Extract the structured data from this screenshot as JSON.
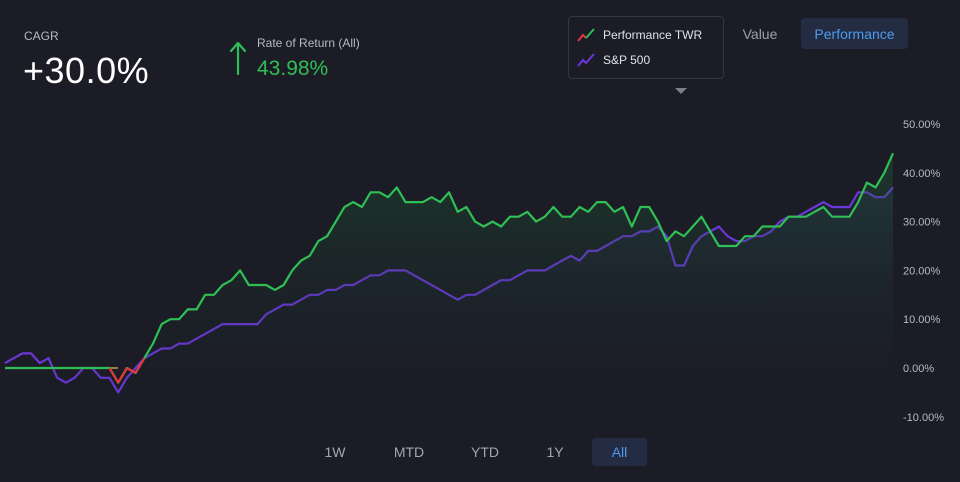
{
  "header": {
    "cagr_label": "CAGR",
    "cagr_value": "+30.0%",
    "ror_label": "Rate of Return (All)",
    "ror_value": "43.98%"
  },
  "legend": {
    "items": [
      {
        "label": "Performance TWR",
        "icon": "red-green-line-icon"
      },
      {
        "label": "S&P 500",
        "icon": "purple-line-icon"
      }
    ]
  },
  "view_toggle": {
    "value_label": "Value",
    "performance_label": "Performance",
    "active": "Performance"
  },
  "range_buttons": {
    "labels": [
      "1W",
      "MTD",
      "YTD",
      "1Y",
      "All"
    ],
    "active": "All"
  },
  "colors": {
    "background": "#1b1c25",
    "performance_line": "#2fbf55",
    "performance_negative": "#e8333c",
    "sp500_line": "#6a38d8",
    "accent_blue": "#4d9bef",
    "baseline": "#c79b5a"
  },
  "chart_data": {
    "type": "line",
    "y_ticks": [
      "50.00%",
      "40.00%",
      "30.00%",
      "20.00%",
      "10.00%",
      "0.00%",
      "-10.00%"
    ],
    "ylim": [
      -13,
      53
    ],
    "y_axis_position": "right",
    "grid": false,
    "series": [
      {
        "name": "Performance TWR",
        "values": [
          0,
          0,
          0,
          0,
          0,
          0,
          0,
          0,
          0,
          0,
          0,
          0,
          0,
          -3,
          0,
          -1,
          2,
          5,
          9,
          10,
          10,
          12,
          12,
          15,
          15,
          17,
          18,
          20,
          17,
          17,
          17,
          16,
          17,
          20,
          22,
          23,
          26,
          27,
          30,
          33,
          34,
          33,
          36,
          36,
          35,
          37,
          34,
          34,
          34,
          35,
          34,
          36,
          32,
          33,
          30,
          29,
          30,
          29,
          31,
          31,
          32,
          30,
          31,
          33,
          31,
          31,
          33,
          32,
          34,
          34,
          32,
          33,
          29,
          33,
          33,
          30,
          26,
          28,
          27,
          29,
          31,
          28,
          25,
          25,
          25,
          27,
          27,
          29,
          29,
          29,
          31,
          31,
          31,
          32,
          33,
          31,
          31,
          31,
          34,
          38,
          37,
          40,
          44
        ]
      },
      {
        "name": "S&P 500",
        "values": [
          1,
          2,
          3,
          3,
          1,
          2,
          -2,
          -3,
          -2,
          0,
          0,
          -2,
          -2,
          -5,
          -2,
          0,
          2,
          3,
          4,
          4,
          5,
          5,
          6,
          7,
          8,
          9,
          9,
          9,
          9,
          9,
          11,
          12,
          13,
          13,
          14,
          15,
          15,
          16,
          16,
          17,
          17,
          18,
          19,
          19,
          20,
          20,
          20,
          19,
          18,
          17,
          16,
          15,
          14,
          15,
          15,
          16,
          17,
          18,
          18,
          19,
          20,
          20,
          20,
          21,
          22,
          23,
          22,
          24,
          24,
          25,
          26,
          27,
          27,
          28,
          28,
          29,
          27,
          21,
          21,
          25,
          27,
          28,
          29,
          27,
          26,
          26,
          27,
          27,
          28,
          30,
          31,
          31,
          32,
          33,
          34,
          33,
          33,
          33,
          36,
          36,
          35,
          35,
          37
        ]
      }
    ]
  }
}
